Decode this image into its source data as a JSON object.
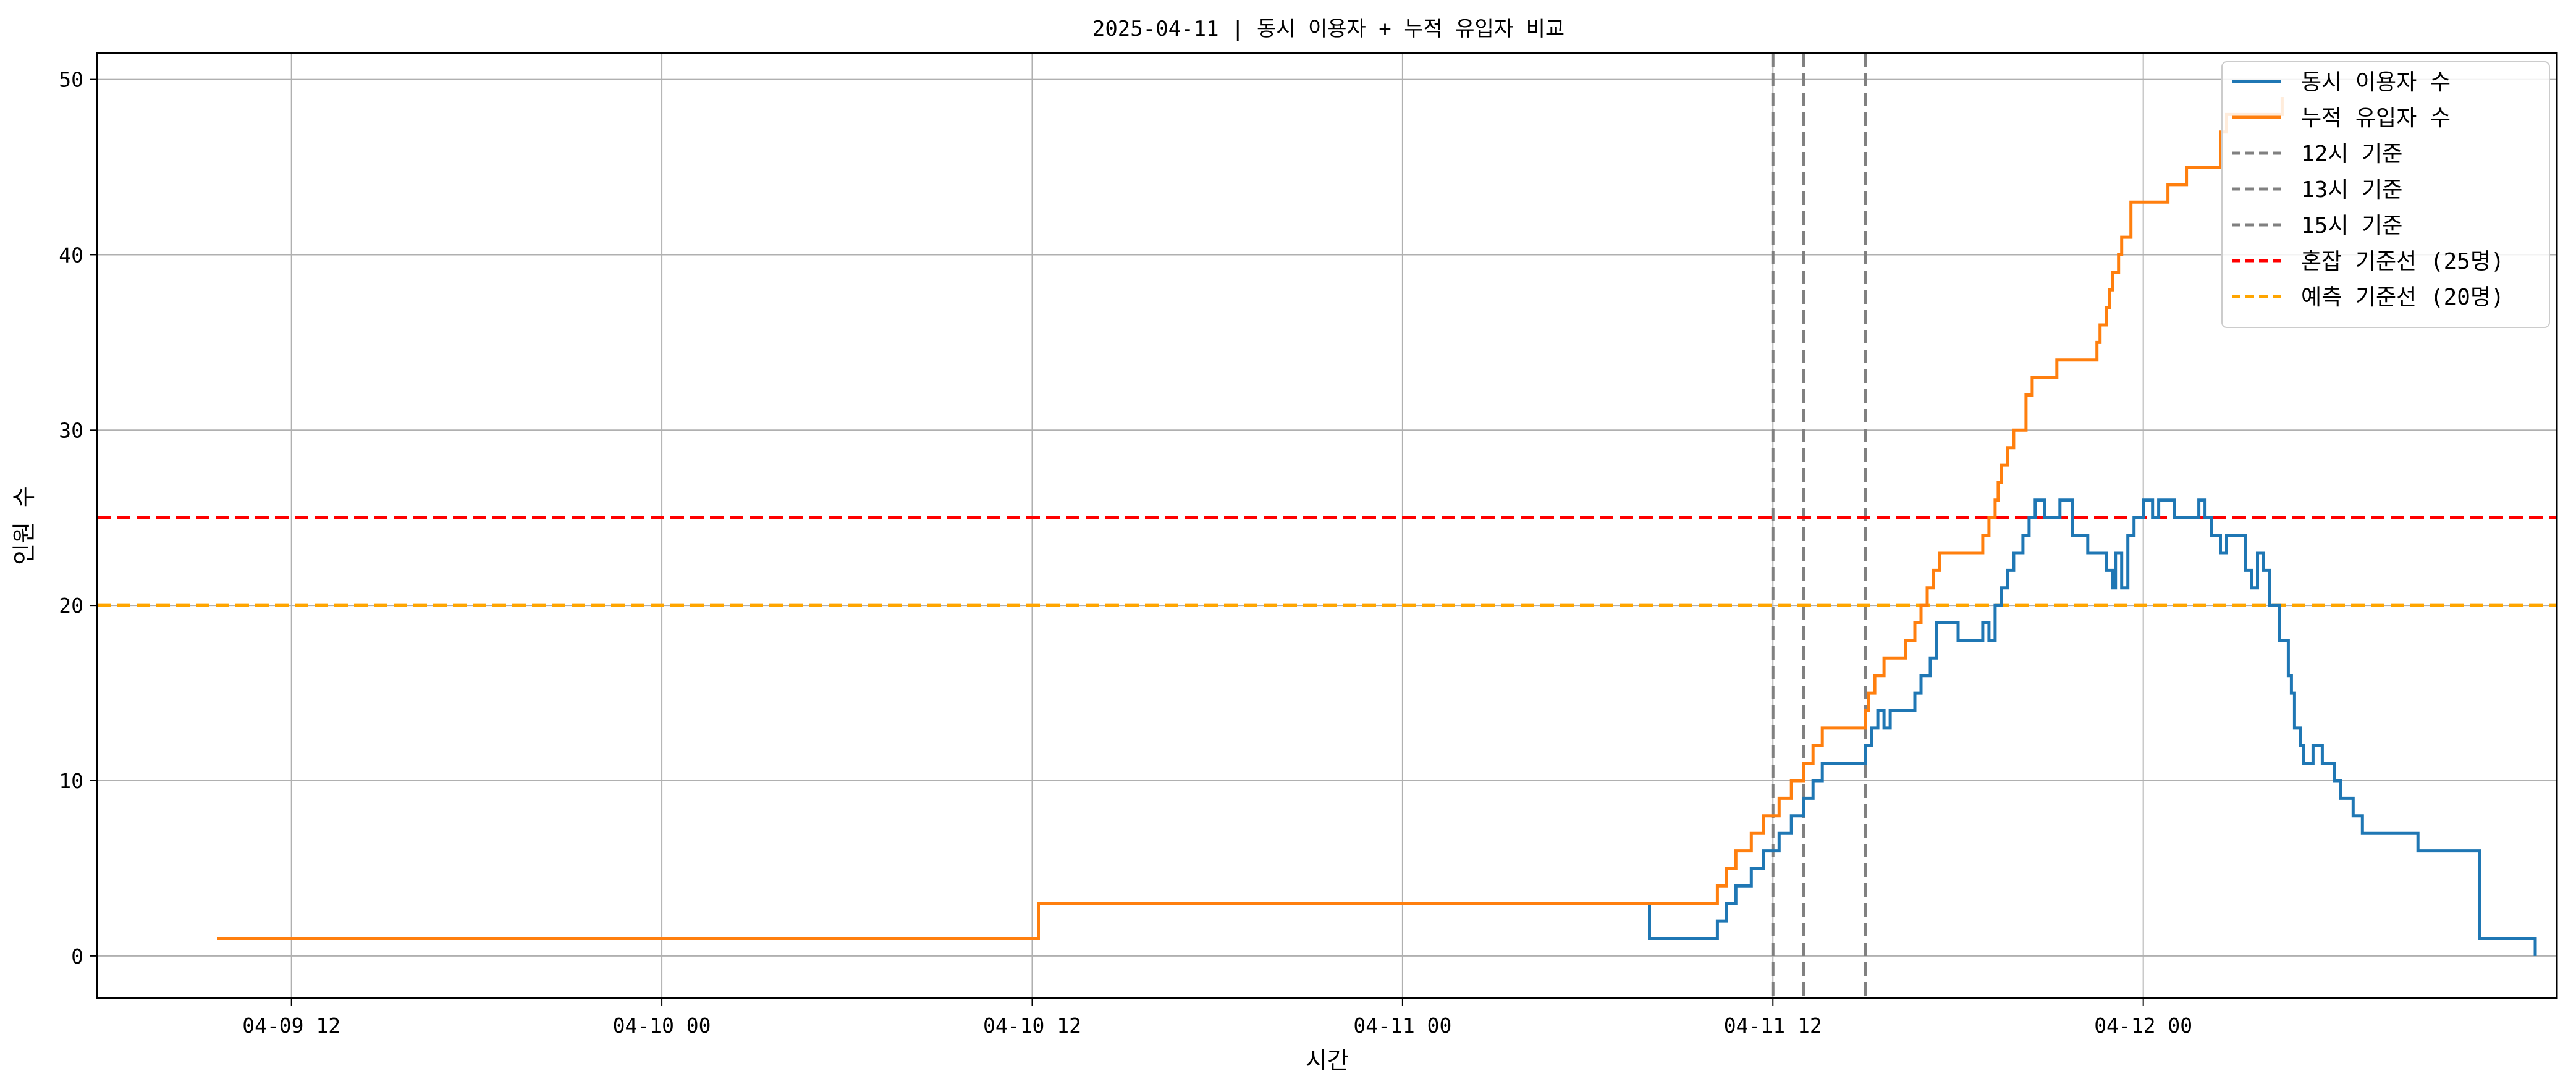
{
  "chart_data": {
    "type": "line",
    "title": "2025-04-11 | 동시 이용자 + 누적 유입자 비교",
    "xlabel": "시간",
    "ylabel": "인원 수",
    "x_ticks": [
      "04-09 12",
      "04-10 00",
      "04-10 12",
      "04-11 00",
      "04-11 12",
      "04-12 00"
    ],
    "x_tick_values": [
      12,
      24,
      36,
      48,
      60,
      72
    ],
    "x_unit_note": "",
    "y_ticks": [
      0,
      10,
      20,
      30,
      40,
      50
    ],
    "xlim": [
      5.7,
      85.4
    ],
    "ylim": [
      -2.4,
      51.5
    ],
    "grid": true,
    "legend_position": "top-right",
    "series": [
      {
        "name": "동시 이용자 수",
        "color": "#1f77b4",
        "style": "step",
        "points": [
          [
            56.0,
            3
          ],
          [
            56.0,
            1
          ],
          [
            58.2,
            1
          ],
          [
            58.2,
            2
          ],
          [
            58.5,
            2
          ],
          [
            58.5,
            3
          ],
          [
            58.8,
            3
          ],
          [
            58.8,
            4
          ],
          [
            59.3,
            4
          ],
          [
            59.3,
            5
          ],
          [
            59.7,
            5
          ],
          [
            59.7,
            6
          ],
          [
            60.2,
            6
          ],
          [
            60.2,
            7
          ],
          [
            60.6,
            7
          ],
          [
            60.6,
            8
          ],
          [
            61.0,
            8
          ],
          [
            61.0,
            9
          ],
          [
            61.3,
            9
          ],
          [
            61.3,
            10
          ],
          [
            61.6,
            10
          ],
          [
            61.6,
            11
          ],
          [
            63.0,
            11
          ],
          [
            63.0,
            12
          ],
          [
            63.2,
            12
          ],
          [
            63.2,
            13
          ],
          [
            63.4,
            13
          ],
          [
            63.4,
            14
          ],
          [
            63.6,
            14
          ],
          [
            63.6,
            13
          ],
          [
            63.8,
            13
          ],
          [
            63.8,
            14
          ],
          [
            64.6,
            14
          ],
          [
            64.6,
            15
          ],
          [
            64.8,
            15
          ],
          [
            64.8,
            16
          ],
          [
            65.1,
            16
          ],
          [
            65.1,
            17
          ],
          [
            65.3,
            17
          ],
          [
            65.3,
            19
          ],
          [
            66.0,
            19
          ],
          [
            66.0,
            18
          ],
          [
            66.8,
            18
          ],
          [
            66.8,
            19
          ],
          [
            67.0,
            19
          ],
          [
            67.0,
            18
          ],
          [
            67.2,
            18
          ],
          [
            67.2,
            20
          ],
          [
            67.4,
            20
          ],
          [
            67.4,
            21
          ],
          [
            67.6,
            21
          ],
          [
            67.6,
            22
          ],
          [
            67.8,
            22
          ],
          [
            67.8,
            23
          ],
          [
            68.1,
            23
          ],
          [
            68.1,
            24
          ],
          [
            68.3,
            24
          ],
          [
            68.3,
            25
          ],
          [
            68.5,
            25
          ],
          [
            68.5,
            26
          ],
          [
            68.8,
            26
          ],
          [
            68.8,
            25
          ],
          [
            69.3,
            25
          ],
          [
            69.3,
            26
          ],
          [
            69.7,
            26
          ],
          [
            69.7,
            24
          ],
          [
            70.2,
            24
          ],
          [
            70.2,
            23
          ],
          [
            70.8,
            23
          ],
          [
            70.8,
            22
          ],
          [
            71.0,
            22
          ],
          [
            71.0,
            21
          ],
          [
            71.1,
            21
          ],
          [
            71.1,
            23
          ],
          [
            71.3,
            23
          ],
          [
            71.3,
            21
          ],
          [
            71.5,
            21
          ],
          [
            71.5,
            24
          ],
          [
            71.7,
            24
          ],
          [
            71.7,
            25
          ],
          [
            72.0,
            25
          ],
          [
            72.0,
            26
          ],
          [
            72.3,
            26
          ],
          [
            72.3,
            25
          ],
          [
            72.5,
            25
          ],
          [
            72.5,
            26
          ],
          [
            73.0,
            26
          ],
          [
            73.0,
            25
          ],
          [
            73.8,
            25
          ],
          [
            73.8,
            26
          ],
          [
            74.0,
            26
          ],
          [
            74.0,
            25
          ],
          [
            74.2,
            25
          ],
          [
            74.2,
            24
          ],
          [
            74.5,
            24
          ],
          [
            74.5,
            23
          ],
          [
            74.7,
            23
          ],
          [
            74.7,
            24
          ],
          [
            75.3,
            24
          ],
          [
            75.3,
            22
          ],
          [
            75.5,
            22
          ],
          [
            75.5,
            21
          ],
          [
            75.7,
            21
          ],
          [
            75.7,
            23
          ],
          [
            75.9,
            23
          ],
          [
            75.9,
            22
          ],
          [
            76.1,
            22
          ],
          [
            76.1,
            20
          ],
          [
            76.4,
            20
          ],
          [
            76.4,
            18
          ],
          [
            76.7,
            18
          ],
          [
            76.7,
            16
          ],
          [
            76.8,
            16
          ],
          [
            76.8,
            15
          ],
          [
            76.9,
            15
          ],
          [
            76.9,
            13
          ],
          [
            77.1,
            13
          ],
          [
            77.1,
            12
          ],
          [
            77.2,
            12
          ],
          [
            77.2,
            11
          ],
          [
            77.5,
            11
          ],
          [
            77.5,
            12
          ],
          [
            77.8,
            12
          ],
          [
            77.8,
            11
          ],
          [
            78.2,
            11
          ],
          [
            78.2,
            10
          ],
          [
            78.4,
            10
          ],
          [
            78.4,
            9
          ],
          [
            78.8,
            9
          ],
          [
            78.8,
            8
          ],
          [
            79.1,
            8
          ],
          [
            79.1,
            7
          ],
          [
            80.9,
            7
          ],
          [
            80.9,
            6
          ],
          [
            82.9,
            6
          ],
          [
            82.9,
            1
          ],
          [
            84.7,
            1
          ],
          [
            84.7,
            0
          ]
        ]
      },
      {
        "name": "누적 유입자 수",
        "color": "#ff7f0e",
        "style": "step",
        "points": [
          [
            9.6,
            1
          ],
          [
            36.2,
            1
          ],
          [
            36.2,
            3
          ],
          [
            58.2,
            3
          ],
          [
            58.2,
            4
          ],
          [
            58.5,
            4
          ],
          [
            58.5,
            5
          ],
          [
            58.8,
            5
          ],
          [
            58.8,
            6
          ],
          [
            59.3,
            6
          ],
          [
            59.3,
            7
          ],
          [
            59.7,
            7
          ],
          [
            59.7,
            8
          ],
          [
            60.2,
            8
          ],
          [
            60.2,
            9
          ],
          [
            60.6,
            9
          ],
          [
            60.6,
            10
          ],
          [
            61.0,
            10
          ],
          [
            61.0,
            11
          ],
          [
            61.3,
            11
          ],
          [
            61.3,
            12
          ],
          [
            61.6,
            12
          ],
          [
            61.6,
            13
          ],
          [
            63.0,
            13
          ],
          [
            63.0,
            14
          ],
          [
            63.1,
            14
          ],
          [
            63.1,
            15
          ],
          [
            63.3,
            15
          ],
          [
            63.3,
            16
          ],
          [
            63.6,
            16
          ],
          [
            63.6,
            17
          ],
          [
            64.3,
            17
          ],
          [
            64.3,
            18
          ],
          [
            64.6,
            18
          ],
          [
            64.6,
            19
          ],
          [
            64.8,
            19
          ],
          [
            64.8,
            20
          ],
          [
            65.0,
            20
          ],
          [
            65.0,
            21
          ],
          [
            65.2,
            21
          ],
          [
            65.2,
            22
          ],
          [
            65.4,
            22
          ],
          [
            65.4,
            23
          ],
          [
            66.8,
            23
          ],
          [
            66.8,
            24
          ],
          [
            67.0,
            24
          ],
          [
            67.0,
            25
          ],
          [
            67.2,
            25
          ],
          [
            67.2,
            26
          ],
          [
            67.3,
            26
          ],
          [
            67.3,
            27
          ],
          [
            67.4,
            27
          ],
          [
            67.4,
            28
          ],
          [
            67.6,
            28
          ],
          [
            67.6,
            29
          ],
          [
            67.8,
            29
          ],
          [
            67.8,
            30
          ],
          [
            68.2,
            30
          ],
          [
            68.2,
            32
          ],
          [
            68.4,
            32
          ],
          [
            68.4,
            33
          ],
          [
            69.2,
            33
          ],
          [
            69.2,
            34
          ],
          [
            70.5,
            34
          ],
          [
            70.5,
            35
          ],
          [
            70.6,
            35
          ],
          [
            70.6,
            36
          ],
          [
            70.8,
            36
          ],
          [
            70.8,
            37
          ],
          [
            70.9,
            37
          ],
          [
            70.9,
            38
          ],
          [
            71.0,
            38
          ],
          [
            71.0,
            39
          ],
          [
            71.2,
            39
          ],
          [
            71.2,
            40
          ],
          [
            71.3,
            40
          ],
          [
            71.3,
            41
          ],
          [
            71.6,
            41
          ],
          [
            71.6,
            43
          ],
          [
            72.8,
            43
          ],
          [
            72.8,
            44
          ],
          [
            73.4,
            44
          ],
          [
            73.4,
            45
          ],
          [
            74.5,
            45
          ],
          [
            74.5,
            47
          ],
          [
            74.7,
            47
          ],
          [
            74.7,
            48
          ],
          [
            76.5,
            48
          ],
          [
            76.5,
            49
          ]
        ]
      }
    ],
    "reference_lines": [
      {
        "name": "12시 기준",
        "orientation": "vertical",
        "x": 60,
        "color": "#808080",
        "style": "dashed"
      },
      {
        "name": "13시 기준",
        "orientation": "vertical",
        "x": 61,
        "color": "#808080",
        "style": "dashed"
      },
      {
        "name": "15시 기준",
        "orientation": "vertical",
        "x": 63,
        "color": "#808080",
        "style": "dashed"
      },
      {
        "name": "혼잡 기준선 (25명)",
        "orientation": "horizontal",
        "y": 25,
        "color": "#ff0000",
        "style": "dashed"
      },
      {
        "name": "예측 기준선 (20명)",
        "orientation": "horizontal",
        "y": 20,
        "color": "#ffa500",
        "style": "dashed"
      }
    ]
  }
}
